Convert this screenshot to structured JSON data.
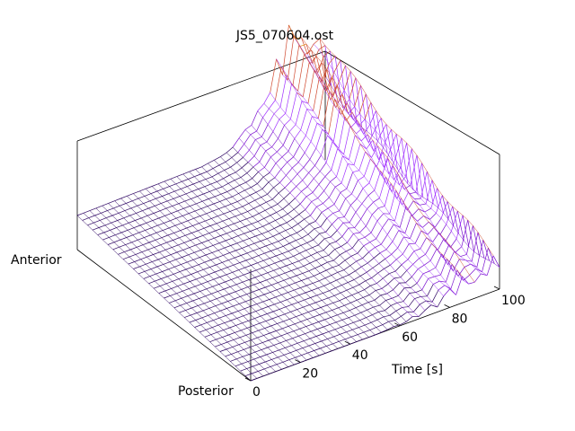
{
  "chart_data": {
    "type": "surface",
    "title": "JS5_070604.ost",
    "xlabel": "Time [s]",
    "y_side_labels": {
      "near": "Posterior",
      "far": "Anterior"
    },
    "xlim": [
      0,
      100
    ],
    "x_ticks": [
      "0",
      "20",
      "40",
      "60",
      "80",
      "100"
    ],
    "x_tick_values": [
      0,
      20,
      40,
      60,
      80,
      100
    ],
    "grid": false,
    "colormap": [
      "#2a0060",
      "#7a10d0",
      "#a030ff",
      "#d04a30",
      "#e08a10"
    ],
    "profile": {
      "description_time": [
        0,
        50,
        60,
        65,
        70,
        75,
        78,
        80,
        83,
        85,
        88,
        90,
        93,
        95,
        97,
        98,
        100
      ],
      "anterior_height": [
        0.0,
        0.02,
        0.05,
        0.12,
        0.2,
        0.3,
        0.4,
        0.55,
        0.45,
        0.8,
        0.6,
        0.7,
        0.5,
        0.55,
        0.62,
        0.7,
        0.3
      ],
      "posterior_height": [
        0.0,
        0.0,
        0.01,
        0.02,
        0.04,
        0.06,
        0.08,
        0.12,
        0.1,
        0.15,
        0.12,
        0.14,
        0.1,
        0.16,
        0.22,
        0.3,
        0.1
      ]
    }
  }
}
